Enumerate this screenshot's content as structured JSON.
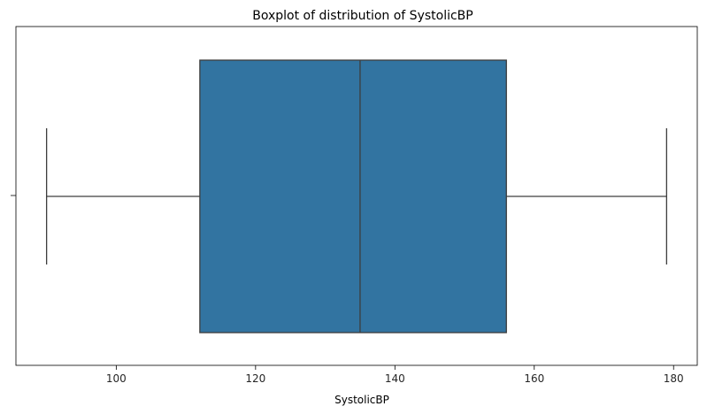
{
  "chart_data": {
    "type": "box",
    "title": "Boxplot of distribution of SystolicBP",
    "xlabel": "SystolicBP",
    "ylabel": "",
    "xlim": [
      85.6,
      183.4
    ],
    "xticks": [
      100,
      120,
      140,
      160,
      180
    ],
    "xtick_labels": [
      "100",
      "120",
      "140",
      "160",
      "180"
    ],
    "grid": false,
    "series": [
      {
        "min": 90,
        "q1": 112,
        "median": 135,
        "q3": 156,
        "max": 179
      }
    ],
    "colors": {
      "box_fill": "#3274a1",
      "line": "#3d3d3d",
      "axes": "#000000"
    }
  }
}
